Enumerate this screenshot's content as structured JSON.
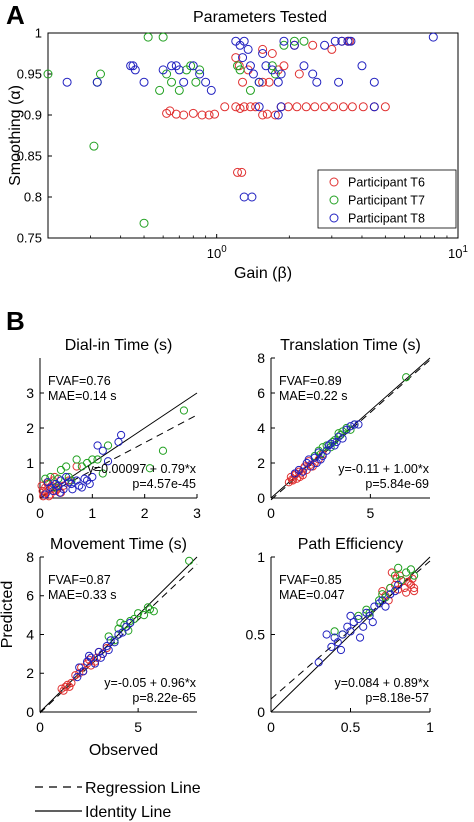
{
  "panel_labels": {
    "a": "A",
    "b": "B"
  },
  "legend_b": {
    "dashed": "Regression Line",
    "solid": "Identity Line"
  },
  "chart_data": [
    {
      "type": "scatter",
      "title": "Parameters Tested",
      "xlabel": "Gain (β)",
      "ylabel": "Smoothing (α)",
      "xscale": "log",
      "xlim": [
        0.2,
        10
      ],
      "ylim": [
        0.75,
        1.0
      ],
      "xticks": [
        1,
        10
      ],
      "xtick_labels": [
        "10^0",
        "10^1"
      ],
      "yticks": [
        0.75,
        0.8,
        0.85,
        0.9,
        0.95,
        1
      ],
      "ytick_labels": [
        "0.75",
        "0.8",
        "0.85",
        "0.9",
        "0.95",
        "1"
      ],
      "grid": false,
      "legend_position": "bottom-right",
      "series": [
        {
          "name": "Participant T6",
          "color": "#e03030",
          "marker": "circle",
          "x": [
            0.62,
            0.64,
            0.68,
            0.73,
            0.8,
            0.87,
            0.93,
            0.98,
            1.08,
            1.2,
            1.25,
            1.3,
            1.38,
            1.45,
            1.55,
            1.62,
            1.75,
            1.85,
            1.98,
            2.15,
            2.35,
            2.55,
            2.8,
            3.05,
            3.35,
            3.65,
            4.05,
            4.5,
            5.0,
            1.22,
            1.27,
            1.28,
            1.55,
            1.65,
            1.8,
            1.9,
            2.2,
            1.2,
            1.24,
            1.35,
            1.55,
            1.7,
            2.1,
            2.5,
            3.0,
            3.3,
            3.5,
            3.55
          ],
          "y": [
            0.902,
            0.905,
            0.901,
            0.9,
            0.902,
            0.9,
            0.9,
            0.901,
            0.91,
            0.91,
            0.908,
            0.91,
            0.91,
            0.91,
            0.9,
            0.901,
            0.9,
            0.91,
            0.91,
            0.91,
            0.91,
            0.91,
            0.91,
            0.91,
            0.91,
            0.91,
            0.91,
            0.91,
            0.91,
            0.83,
            0.83,
            0.94,
            0.94,
            0.94,
            0.955,
            0.96,
            0.95,
            0.97,
            0.96,
            0.955,
            0.98,
            0.975,
            0.985,
            0.985,
            0.98,
            0.99,
            0.99,
            0.99
          ]
        },
        {
          "name": "Participant T7",
          "color": "#20a020",
          "marker": "circle",
          "x": [
            0.2,
            0.31,
            0.32,
            0.33,
            0.5,
            0.52,
            0.58,
            0.6,
            0.62,
            0.65,
            0.7,
            0.75,
            0.78,
            0.82,
            0.85,
            1.22,
            1.25,
            1.38,
            1.5,
            1.7,
            1.75,
            1.9,
            2.1,
            2.3
          ],
          "y": [
            0.95,
            0.862,
            0.94,
            0.95,
            0.768,
            0.995,
            0.93,
            0.995,
            0.95,
            0.94,
            0.93,
            0.955,
            0.96,
            0.94,
            0.955,
            0.96,
            0.955,
            0.93,
            0.94,
            0.96,
            0.95,
            0.985,
            0.99,
            0.99
          ]
        },
        {
          "name": "Participant T8",
          "color": "#2020c0",
          "marker": "circle",
          "x": [
            0.24,
            0.32,
            0.44,
            0.45,
            0.46,
            0.5,
            0.6,
            0.65,
            0.68,
            0.7,
            0.73,
            0.8,
            0.85,
            0.9,
            0.95,
            1.2,
            1.25,
            1.28,
            1.3,
            1.35,
            1.38,
            1.42,
            1.5,
            1.55,
            1.6,
            1.7,
            1.8,
            1.85,
            1.9,
            2.1,
            2.3,
            2.5,
            2.6,
            2.8,
            3.1,
            3.2,
            3.3,
            3.5,
            3.6,
            4.0,
            4.5,
            7.9,
            1.3,
            1.4,
            1.5,
            1.8,
            1.85,
            4.5
          ],
          "y": [
            0.94,
            0.94,
            0.96,
            0.96,
            0.955,
            0.94,
            0.955,
            0.96,
            0.96,
            0.955,
            0.94,
            0.96,
            0.95,
            0.94,
            0.93,
            0.99,
            0.985,
            0.97,
            0.99,
            0.98,
            0.96,
            0.95,
            0.94,
            0.975,
            0.96,
            0.955,
            0.94,
            0.95,
            0.99,
            0.985,
            0.96,
            0.95,
            0.94,
            0.985,
            0.99,
            0.94,
            0.99,
            0.99,
            0.99,
            0.96,
            0.94,
            0.995,
            0.8,
            0.8,
            0.91,
            0.9,
            0.91,
            0.91
          ]
        }
      ]
    },
    {
      "type": "scatter",
      "title": "Dial-in Time (s)",
      "xlim": [
        0,
        3
      ],
      "ylim": [
        0,
        4
      ],
      "xticks": [
        0,
        1,
        2,
        3
      ],
      "yticks": [
        0,
        1,
        2,
        3
      ],
      "fvaf": "FVAF=0.76",
      "mae": "MAE=0.14 s",
      "equation": "y=0.00097 + 0.79*x",
      "pvalue": "p=4.57e-45",
      "regression": {
        "intercept": 0.00097,
        "slope": 0.79
      },
      "series": [
        {
          "name": "",
          "color": "#e03030",
          "x": [
            0.05,
            0.08,
            0.1,
            0.12,
            0.15,
            0.18,
            0.2,
            0.22,
            0.25,
            0.3,
            0.35,
            0.4,
            0.06,
            0.14,
            0.28,
            0.45,
            0.55,
            0.7,
            0.03,
            0.17,
            0.33
          ],
          "y": [
            0.2,
            0.1,
            0.3,
            0.15,
            0.4,
            0.25,
            0.1,
            0.35,
            0.5,
            0.2,
            0.3,
            0.15,
            0.05,
            0.45,
            0.6,
            0.35,
            0.5,
            0.9,
            0.35,
            0.05,
            0.25
          ]
        },
        {
          "name": "",
          "color": "#20a020",
          "x": [
            0.1,
            0.2,
            0.3,
            0.4,
            0.5,
            0.6,
            0.7,
            0.9,
            1.1,
            1.2,
            1.3,
            2.1,
            2.35,
            2.75,
            0.35,
            0.55,
            0.8,
            1.0
          ],
          "y": [
            0.55,
            0.6,
            0.3,
            0.8,
            0.9,
            0.5,
            1.1,
            1.0,
            1.1,
            0.7,
            1.5,
            0.85,
            1.35,
            2.5,
            0.55,
            0.6,
            0.9,
            1.1
          ]
        },
        {
          "name": "",
          "color": "#2020c0",
          "x": [
            0.1,
            0.2,
            0.25,
            0.3,
            0.35,
            0.4,
            0.45,
            0.5,
            0.55,
            0.6,
            0.7,
            0.75,
            0.8,
            0.9,
            1.0,
            1.1,
            1.2,
            1.5,
            1.55,
            0.15,
            0.38,
            0.62,
            0.85,
            0.95,
            1.3
          ],
          "y": [
            0.1,
            0.3,
            0.2,
            0.4,
            0.35,
            0.5,
            0.25,
            0.6,
            0.45,
            0.4,
            0.5,
            0.35,
            0.3,
            0.5,
            0.6,
            1.5,
            1.35,
            1.6,
            1.8,
            0.45,
            0.15,
            0.25,
            0.55,
            0.4,
            1.05
          ]
        }
      ]
    },
    {
      "type": "scatter",
      "title": "Translation Time (s)",
      "xlim": [
        0,
        8
      ],
      "ylim": [
        0,
        8
      ],
      "xticks": [
        0,
        5
      ],
      "yticks": [
        0,
        2,
        4,
        6,
        8
      ],
      "fvaf": "FVAF=0.89",
      "mae": "MAE=0.22 s",
      "equation": "y=-0.11 + 1.00*x",
      "pvalue": "p=5.84e-69",
      "regression": {
        "intercept": -0.11,
        "slope": 1.0
      },
      "series": [
        {
          "name": "",
          "color": "#e03030",
          "x": [
            0.9,
            1.0,
            1.1,
            1.2,
            1.3,
            1.4,
            1.5,
            1.6,
            1.7,
            1.8,
            2.0,
            2.2,
            2.4,
            2.6,
            1.05,
            1.25,
            1.45,
            1.65,
            1.9,
            2.1
          ],
          "y": [
            0.9,
            1.2,
            1.0,
            1.3,
            1.1,
            1.5,
            1.4,
            1.3,
            1.8,
            1.6,
            1.9,
            2.0,
            2.2,
            2.5,
            1.05,
            1.4,
            1.2,
            1.7,
            2.1,
            1.8
          ]
        },
        {
          "name": "",
          "color": "#20a020",
          "x": [
            2.2,
            2.4,
            2.5,
            2.8,
            3.0,
            3.2,
            3.4,
            3.5,
            3.8,
            4.0,
            4.2,
            6.8,
            2.6,
            3.1,
            3.6
          ],
          "y": [
            2.4,
            2.7,
            2.5,
            3.0,
            2.9,
            3.3,
            3.7,
            3.6,
            4.0,
            3.9,
            4.2,
            6.9,
            2.9,
            3.2,
            3.8
          ]
        },
        {
          "name": "",
          "color": "#2020c0",
          "x": [
            1.2,
            1.4,
            1.6,
            1.8,
            2.0,
            2.2,
            2.4,
            2.6,
            2.8,
            3.0,
            3.2,
            3.4,
            3.6,
            3.8,
            4.0,
            4.2,
            4.4,
            2.5,
            2.9,
            3.3,
            1.9,
            2.3
          ],
          "y": [
            1.4,
            1.6,
            1.5,
            2.0,
            1.8,
            2.3,
            2.6,
            2.4,
            2.7,
            3.1,
            3.0,
            3.5,
            3.4,
            3.9,
            4.1,
            4.2,
            4.2,
            2.2,
            3.0,
            3.2,
            2.2,
            2.0
          ]
        }
      ]
    },
    {
      "type": "scatter",
      "title": "Movement Time (s)",
      "ylabel": "Predicted",
      "xlabel": "Observed",
      "xlim": [
        0,
        8
      ],
      "ylim": [
        0,
        8
      ],
      "xticks": [
        0,
        5
      ],
      "yticks": [
        0,
        2,
        4,
        6,
        8
      ],
      "fvaf": "FVAF=0.87",
      "mae": "MAE=0.33 s",
      "equation": "y=-0.05 + 0.96*x",
      "pvalue": "p=8.22e-65",
      "regression": {
        "intercept": -0.05,
        "slope": 0.96
      },
      "series": [
        {
          "name": "",
          "color": "#e03030",
          "x": [
            1.1,
            1.2,
            1.3,
            1.4,
            1.6,
            1.8,
            2.0,
            2.2,
            2.4,
            2.6,
            2.8,
            3.0,
            3.2,
            3.4,
            2.1,
            2.5,
            2.9,
            1.5
          ],
          "y": [
            1.2,
            1.1,
            1.3,
            1.4,
            1.5,
            1.9,
            2.0,
            2.1,
            2.5,
            2.4,
            2.6,
            3.1,
            3.0,
            3.3,
            2.3,
            2.7,
            2.8,
            1.3
          ]
        },
        {
          "name": "",
          "color": "#20a020",
          "x": [
            3.5,
            3.8,
            4.0,
            4.3,
            4.5,
            4.8,
            5.0,
            5.3,
            5.6,
            5.8,
            7.6,
            4.1,
            4.6,
            5.5
          ],
          "y": [
            3.9,
            3.7,
            4.3,
            4.5,
            4.2,
            4.8,
            5.1,
            5.0,
            5.3,
            5.2,
            7.8,
            4.6,
            4.7,
            5.4
          ]
        },
        {
          "name": "",
          "color": "#2020c0",
          "x": [
            2.0,
            2.2,
            2.4,
            2.6,
            2.8,
            3.0,
            3.2,
            3.4,
            3.6,
            3.8,
            4.0,
            4.2,
            4.4,
            4.6,
            2.5,
            3.1,
            3.5,
            1.9
          ],
          "y": [
            2.3,
            2.1,
            2.6,
            2.8,
            2.5,
            3.1,
            3.0,
            3.4,
            3.7,
            3.6,
            4.0,
            4.1,
            4.4,
            4.6,
            2.9,
            2.8,
            3.2,
            1.8
          ]
        }
      ]
    },
    {
      "type": "scatter",
      "title": "Path Efficiency",
      "xlim": [
        0,
        1
      ],
      "ylim": [
        0,
        1
      ],
      "xticks": [
        0,
        0.5,
        1
      ],
      "yticks": [
        0,
        0.5,
        1
      ],
      "fvaf": "FVAF=0.85",
      "mae": "MAE=0.047",
      "equation": "y=0.084 + 0.89*x",
      "pvalue": "p=8.18e-57",
      "regression": {
        "intercept": 0.084,
        "slope": 0.89
      },
      "series": [
        {
          "name": "",
          "color": "#e03030",
          "x": [
            0.7,
            0.72,
            0.75,
            0.78,
            0.8,
            0.82,
            0.84,
            0.86,
            0.88,
            0.9,
            0.74,
            0.79,
            0.85,
            0.87,
            0.76,
            0.81,
            0.89,
            0.9
          ],
          "y": [
            0.78,
            0.75,
            0.8,
            0.82,
            0.79,
            0.85,
            0.8,
            0.84,
            0.82,
            0.8,
            0.72,
            0.86,
            0.77,
            0.83,
            0.9,
            0.88,
            0.86,
            0.78
          ]
        },
        {
          "name": "",
          "color": "#20a020",
          "x": [
            0.4,
            0.45,
            0.55,
            0.6,
            0.62,
            0.68,
            0.7,
            0.75,
            0.78,
            0.82,
            0.85,
            0.88,
            0.9,
            0.72,
            0.8
          ],
          "y": [
            0.52,
            0.5,
            0.62,
            0.66,
            0.64,
            0.72,
            0.76,
            0.8,
            0.88,
            0.85,
            0.9,
            0.92,
            0.88,
            0.74,
            0.93
          ]
        },
        {
          "name": "",
          "color": "#2020c0",
          "x": [
            0.3,
            0.35,
            0.38,
            0.4,
            0.42,
            0.45,
            0.48,
            0.5,
            0.52,
            0.55,
            0.58,
            0.6,
            0.62,
            0.65,
            0.68,
            0.7,
            0.72,
            0.75,
            0.78,
            0.8,
            0.44,
            0.56,
            0.64,
            0.5
          ],
          "y": [
            0.32,
            0.5,
            0.42,
            0.48,
            0.45,
            0.5,
            0.55,
            0.52,
            0.58,
            0.6,
            0.55,
            0.64,
            0.62,
            0.68,
            0.7,
            0.72,
            0.68,
            0.76,
            0.78,
            0.82,
            0.4,
            0.48,
            0.58,
            0.62
          ]
        }
      ]
    }
  ]
}
